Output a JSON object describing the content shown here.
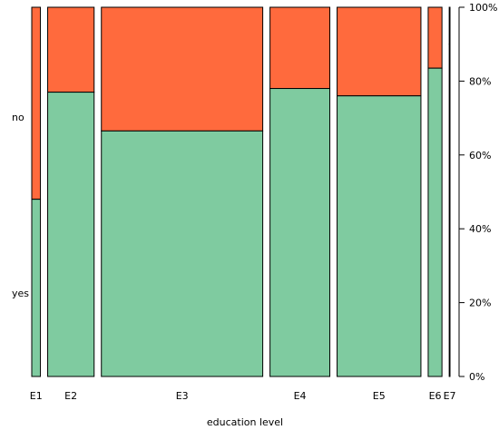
{
  "chart_data": {
    "type": "mosaic",
    "xlabel": "education level",
    "ylabel": "",
    "categories": [
      "E1",
      "E2",
      "E3",
      "E4",
      "E5",
      "E6",
      "E7"
    ],
    "widths": [
      2.2,
      11.8,
      41.0,
      15.2,
      21.3,
      3.5,
      0.2
    ],
    "segments": [
      "yes",
      "no"
    ],
    "yes_share": [
      0.48,
      0.77,
      0.665,
      0.78,
      0.76,
      0.835,
      0.9
    ],
    "right_axis": {
      "ticks": [
        0,
        0.2,
        0.4,
        0.6,
        0.8,
        1.0
      ],
      "tick_labels": [
        "0%",
        "20%",
        "40%",
        "60%",
        "80%",
        "100%"
      ]
    },
    "colors": {
      "yes": "#7FCBA0",
      "no": "#FF6A3D",
      "border": "#000000"
    },
    "grid": false,
    "legend": "left-axis-labels"
  }
}
